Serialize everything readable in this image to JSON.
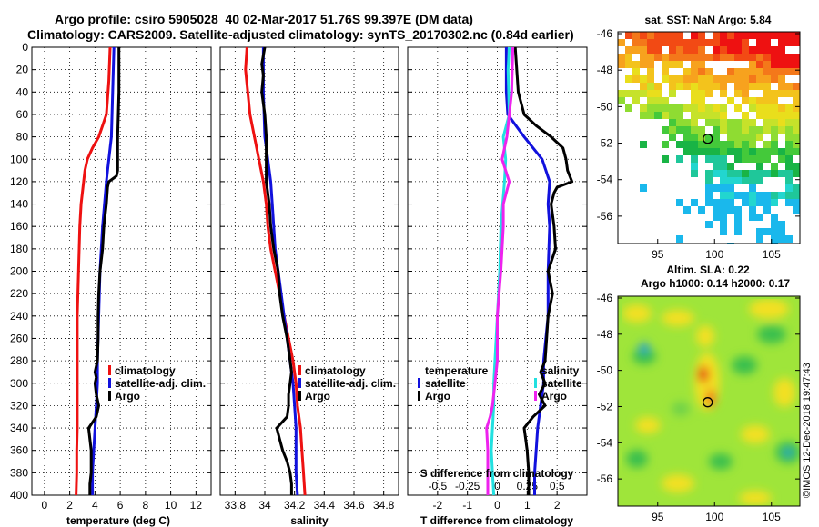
{
  "header": {
    "line1": "Argo profile: csiro 5905028_40 02-Mar-2017 51.76S 99.397E (DM data)",
    "line2": "Climatology: CARS2009. Satellite-adjusted climatology: synTS_20170302.nc (0.84d earlier)"
  },
  "footer": {
    "credit": "©IMOS 12-Dec-2018 19:47:43"
  },
  "colors": {
    "red": "#ee1111",
    "blue": "#1111dd",
    "black": "#000000",
    "cyan": "#22e0e0",
    "magenta": "#ee22ee"
  },
  "chart_data": [
    {
      "type": "line",
      "id": "temperature",
      "xlabel": "temperature (deg C)",
      "xlim": [
        -1,
        13.2
      ],
      "ylim": [
        0,
        400
      ],
      "xticks": [
        "0",
        "2",
        "4",
        "6",
        "8",
        "10",
        "12"
      ],
      "yticks": [
        "0",
        "20",
        "40",
        "60",
        "80",
        "100",
        "120",
        "140",
        "160",
        "180",
        "200",
        "220",
        "240",
        "260",
        "280",
        "300",
        "320",
        "340",
        "360",
        "380",
        "400"
      ],
      "legend": [
        "climatology",
        "satellite-adj. clim.",
        "Argo"
      ],
      "series": [
        {
          "name": "climatology",
          "color": "red",
          "depth": [
            0,
            30,
            60,
            80,
            90,
            100,
            110,
            120,
            140,
            160,
            180,
            200,
            220,
            240,
            260,
            280,
            300,
            320,
            340,
            360,
            380,
            400
          ],
          "values": [
            5.2,
            5.1,
            4.9,
            4.3,
            3.8,
            3.4,
            3.2,
            3.1,
            2.9,
            2.8,
            2.75,
            2.7,
            2.65,
            2.6,
            2.6,
            2.6,
            2.6,
            2.6,
            2.6,
            2.55,
            2.55,
            2.5
          ]
        },
        {
          "name": "satellite-adj. clim.",
          "color": "blue",
          "depth": [
            0,
            40,
            80,
            100,
            110,
            120,
            160,
            200,
            240,
            280,
            300,
            320,
            340,
            360,
            380,
            400
          ],
          "values": [
            5.5,
            5.4,
            5.3,
            5.1,
            5.0,
            4.9,
            4.6,
            4.4,
            4.3,
            4.2,
            4.2,
            4.1,
            4.0,
            3.9,
            3.8,
            3.8
          ]
        },
        {
          "name": "Argo",
          "color": "black",
          "depth": [
            0,
            40,
            80,
            100,
            110,
            115,
            120,
            125,
            140,
            160,
            180,
            200,
            220,
            240,
            260,
            280,
            290,
            295,
            300,
            310,
            320,
            330,
            340,
            350,
            360,
            370,
            380,
            390,
            400
          ],
          "values": [
            5.9,
            5.9,
            5.8,
            5.8,
            5.8,
            5.7,
            5.1,
            5.0,
            4.9,
            4.7,
            4.6,
            4.4,
            4.3,
            4.25,
            4.25,
            4.2,
            4.0,
            4.1,
            4.0,
            4.1,
            4.3,
            4.1,
            3.5,
            3.6,
            3.7,
            3.7,
            3.7,
            3.6,
            3.6
          ]
        }
      ]
    },
    {
      "type": "line",
      "id": "salinity",
      "xlabel": "salinity",
      "xlim": [
        33.7,
        34.9
      ],
      "ylim": [
        0,
        400
      ],
      "xticks": [
        "33.8",
        "34",
        "34.2",
        "34.4",
        "34.6",
        "34.8"
      ],
      "legend": [
        "climatology",
        "satellite-adj. clim.",
        "Argo"
      ],
      "series": [
        {
          "name": "climatology",
          "color": "red",
          "depth": [
            0,
            20,
            60,
            80,
            100,
            120,
            140,
            160,
            180,
            200,
            220,
            240,
            260,
            280,
            300,
            320,
            340,
            360,
            380,
            400
          ],
          "values": [
            33.88,
            33.87,
            33.9,
            33.93,
            33.96,
            33.99,
            34.01,
            34.02,
            34.04,
            34.07,
            34.1,
            34.13,
            34.16,
            34.19,
            34.21,
            34.22,
            34.24,
            34.25,
            34.26,
            34.27
          ]
        },
        {
          "name": "satellite-adj. clim.",
          "color": "blue",
          "depth": [
            0,
            40,
            80,
            100,
            120,
            140,
            160,
            180,
            200,
            220,
            240,
            260,
            280,
            300,
            320,
            340,
            360,
            380,
            400
          ],
          "values": [
            33.99,
            33.99,
            34.0,
            34.02,
            34.04,
            34.05,
            34.06,
            34.07,
            34.09,
            34.11,
            34.13,
            34.15,
            34.17,
            34.19,
            34.2,
            34.21,
            34.21,
            34.21,
            34.22
          ]
        },
        {
          "name": "Argo",
          "color": "black",
          "depth": [
            0,
            15,
            25,
            40,
            60,
            80,
            100,
            120,
            140,
            160,
            180,
            200,
            220,
            240,
            260,
            280,
            290,
            300,
            310,
            320,
            330,
            340,
            350,
            360,
            370,
            380,
            390,
            400
          ],
          "values": [
            34.0,
            33.98,
            33.99,
            33.98,
            34.0,
            34.01,
            34.01,
            34.01,
            34.03,
            34.04,
            34.06,
            34.09,
            34.1,
            34.12,
            34.15,
            34.17,
            34.18,
            34.17,
            34.16,
            34.16,
            34.15,
            34.08,
            34.1,
            34.12,
            34.15,
            34.17,
            34.18,
            34.18
          ]
        }
      ]
    },
    {
      "type": "line",
      "id": "difference",
      "xlabel": "T difference from climatology",
      "toplabel": "S difference from climatology",
      "xlim": [
        -3,
        3
      ],
      "ylim": [
        0,
        400
      ],
      "xticks": [
        "-2",
        "-1",
        "0",
        "1",
        "2"
      ],
      "sticks": [
        "-0.5",
        "-0.25",
        "0",
        "0.25",
        "0.5"
      ],
      "legend_temperature": {
        "title": "temperature",
        "entries": [
          "satellite",
          "Argo"
        ]
      },
      "legend_salinity": {
        "title": "salinity",
        "entries": [
          "satellite",
          "Argo"
        ]
      },
      "series": [
        {
          "name": "T satellite",
          "color": "blue",
          "depth": [
            0,
            40,
            60,
            80,
            100,
            120,
            140,
            160,
            200,
            240,
            280,
            300,
            320,
            340,
            360,
            380,
            400
          ],
          "values": [
            0.3,
            0.3,
            0.35,
            0.9,
            1.5,
            1.75,
            1.7,
            1.75,
            1.7,
            1.7,
            1.55,
            1.55,
            1.45,
            1.35,
            1.3,
            1.25,
            1.25
          ]
        },
        {
          "name": "T Argo",
          "color": "black",
          "depth": [
            0,
            40,
            60,
            70,
            80,
            90,
            100,
            110,
            120,
            125,
            130,
            140,
            160,
            180,
            200,
            220,
            240,
            260,
            280,
            290,
            300,
            310,
            320,
            330,
            340,
            350,
            360,
            380,
            400
          ],
          "values": [
            0.6,
            0.7,
            0.9,
            1.3,
            1.8,
            2.2,
            2.3,
            2.35,
            2.5,
            2.0,
            1.9,
            1.8,
            1.9,
            1.95,
            1.7,
            1.85,
            1.7,
            1.65,
            1.6,
            1.45,
            1.6,
            1.4,
            1.6,
            1.2,
            0.9,
            0.95,
            1.0,
            1.05,
            1.05
          ]
        },
        {
          "name": "S satellite",
          "color": "cyan",
          "depth": [
            0,
            20,
            60,
            80,
            100,
            120,
            160,
            200,
            240,
            280,
            300,
            320,
            340,
            360,
            380,
            400
          ],
          "values": [
            0.1,
            0.09,
            0.1,
            0.05,
            0.07,
            0.06,
            0.03,
            0.02,
            0.0,
            -0.02,
            -0.03,
            -0.03,
            -0.04,
            -0.05,
            -0.04,
            -0.03
          ]
        },
        {
          "name": "S Argo",
          "color": "magenta",
          "depth": [
            0,
            40,
            80,
            100,
            120,
            140,
            160,
            200,
            240,
            280,
            300,
            320,
            330,
            340,
            360,
            380,
            400
          ],
          "values": [
            0.13,
            0.12,
            0.08,
            0.04,
            0.1,
            0.05,
            0.05,
            0.03,
            0.0,
            0.0,
            -0.02,
            -0.04,
            -0.06,
            -0.09,
            -0.08,
            -0.08,
            -0.08
          ]
        }
      ]
    },
    {
      "type": "heatmap",
      "id": "sst_map",
      "title": "sat. SST: NaN Argo: 5.84",
      "xticks": [
        "95",
        "100",
        "105"
      ],
      "yticks": [
        "-46",
        "-48",
        "-50",
        "-52",
        "-54",
        "-56"
      ],
      "xlim": [
        91.5,
        107.5
      ],
      "ylim": [
        -57.5,
        -45.9
      ],
      "argo": {
        "lon": 99.397,
        "lat": -51.76
      }
    },
    {
      "type": "heatmap",
      "id": "sla_map",
      "title": "Altim. SLA: 0.22",
      "subtitle": "Argo h1000: 0.14 h2000: 0.17",
      "xticks": [
        "95",
        "100",
        "105"
      ],
      "yticks": [
        "-46",
        "-48",
        "-50",
        "-52",
        "-54",
        "-56"
      ],
      "xlim": [
        91.5,
        107.5
      ],
      "ylim": [
        -57.5,
        -45.9
      ],
      "argo": {
        "lon": 99.397,
        "lat": -51.76
      }
    }
  ]
}
